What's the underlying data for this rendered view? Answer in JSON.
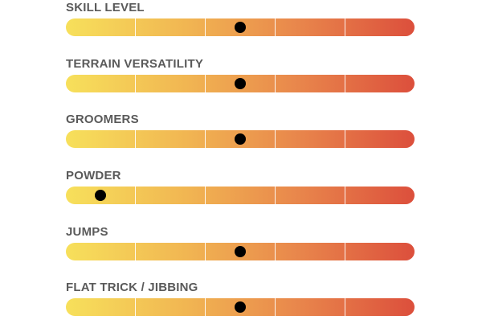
{
  "ratings": [
    {
      "label": "SKILL LEVEL",
      "level": 0.5
    },
    {
      "label": "TERRAIN VERSATILITY",
      "level": 0.5
    },
    {
      "label": "GROOMERS",
      "level": 0.5
    },
    {
      "label": "POWDER",
      "level": 0.1
    },
    {
      "label": "JUMPS",
      "level": 0.5
    },
    {
      "label": "FLAT TRICK / JIBBING",
      "level": 0.5
    }
  ],
  "scale_segments": 5,
  "colors": {
    "gradient_start": "#f7e05b",
    "gradient_end": "#dc4f3c",
    "marker": "#000000",
    "label": "#5a5a5a"
  }
}
